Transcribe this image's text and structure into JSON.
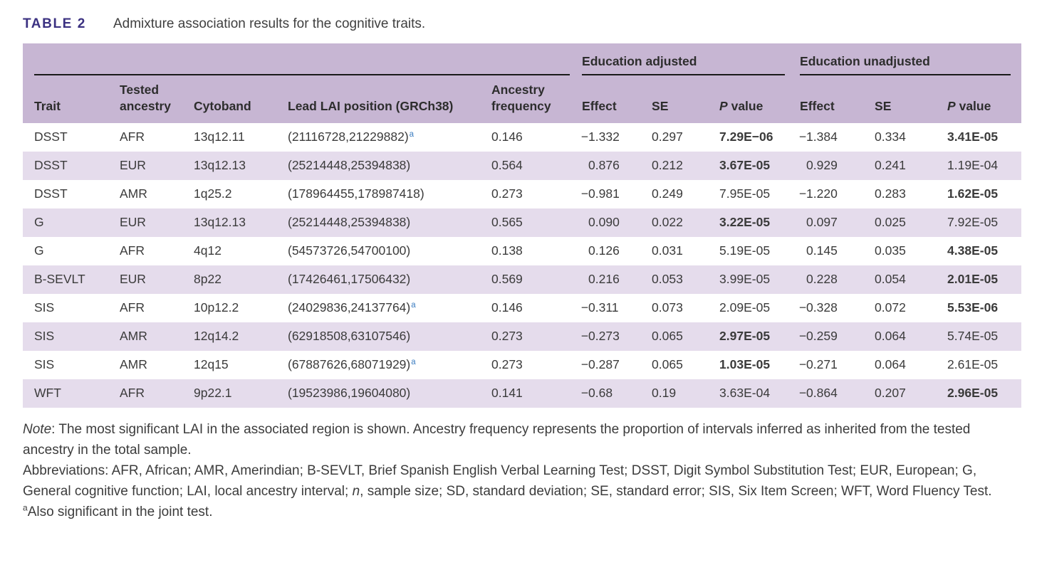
{
  "title": {
    "label": "TABLE 2",
    "caption": "Admixture association results for the cognitive traits."
  },
  "colors": {
    "header_bg": "#c7b6d3",
    "stripe_bg": "#e5dcec",
    "title_color": "#3b3181",
    "text_color": "#3b3b3b",
    "rule_color": "#1a1a1a",
    "footnote_blue": "#3d7ec1",
    "page_bg": "#ffffff"
  },
  "table": {
    "groups": [
      {
        "label": "",
        "span": 5
      },
      {
        "label": "Education adjusted",
        "span": 3
      },
      {
        "label": "Education unadjusted",
        "span": 3
      }
    ],
    "columns": [
      {
        "label": "Trait"
      },
      {
        "label": "Tested ancestry"
      },
      {
        "label": "Cytoband"
      },
      {
        "label": "Lead LAI position (GRCh38)"
      },
      {
        "label": "Ancestry frequency"
      },
      {
        "label": "Effect"
      },
      {
        "label": "SE"
      },
      {
        "label": "P value",
        "italic_first": true
      },
      {
        "label": "Effect"
      },
      {
        "label": "SE"
      },
      {
        "label": "P value",
        "italic_first": true
      }
    ],
    "rows": [
      {
        "trait": "DSST",
        "ancestry": "AFR",
        "cytoband": "13q12.11",
        "position": "(21116728,21229882)",
        "footnote": "a",
        "frequency": "0.146",
        "adj_effect": "−1.332",
        "adj_se": "0.297",
        "adj_p": "7.29E−06",
        "adj_p_bold": true,
        "unadj_effect": "−1.384",
        "unadj_se": "0.334",
        "unadj_p": "3.41E-05",
        "unadj_p_bold": true
      },
      {
        "trait": "DSST",
        "ancestry": "EUR",
        "cytoband": "13q12.13",
        "position": "(25214448,25394838)",
        "footnote": "",
        "frequency": "0.564",
        "adj_effect": "0.876",
        "adj_se": "0.212",
        "adj_p": "3.67E-05",
        "adj_p_bold": true,
        "unadj_effect": "0.929",
        "unadj_se": "0.241",
        "unadj_p": "1.19E-04",
        "unadj_p_bold": false
      },
      {
        "trait": "DSST",
        "ancestry": "AMR",
        "cytoband": "1q25.2",
        "position": "(178964455,178987418)",
        "footnote": "",
        "frequency": "0.273",
        "adj_effect": "−0.981",
        "adj_se": "0.249",
        "adj_p": "7.95E-05",
        "adj_p_bold": false,
        "unadj_effect": "−1.220",
        "unadj_se": "0.283",
        "unadj_p": "1.62E-05",
        "unadj_p_bold": true
      },
      {
        "trait": "G",
        "ancestry": "EUR",
        "cytoband": "13q12.13",
        "position": "(25214448,25394838)",
        "footnote": "",
        "frequency": "0.565",
        "adj_effect": "0.090",
        "adj_se": "0.022",
        "adj_p": "3.22E-05",
        "adj_p_bold": true,
        "unadj_effect": "0.097",
        "unadj_se": "0.025",
        "unadj_p": "7.92E-05",
        "unadj_p_bold": false
      },
      {
        "trait": "G",
        "ancestry": "AFR",
        "cytoband": "4q12",
        "position": "(54573726,54700100)",
        "footnote": "",
        "frequency": "0.138",
        "adj_effect": "0.126",
        "adj_se": "0.031",
        "adj_p": "5.19E-05",
        "adj_p_bold": false,
        "unadj_effect": "0.145",
        "unadj_se": "0.035",
        "unadj_p": "4.38E-05",
        "unadj_p_bold": true
      },
      {
        "trait": "B-SEVLT",
        "ancestry": "EUR",
        "cytoband": "8p22",
        "position": "(17426461,17506432)",
        "footnote": "",
        "frequency": "0.569",
        "adj_effect": "0.216",
        "adj_se": "0.053",
        "adj_p": "3.99E-05",
        "adj_p_bold": false,
        "unadj_effect": "0.228",
        "unadj_se": "0.054",
        "unadj_p": "2.01E-05",
        "unadj_p_bold": true
      },
      {
        "trait": "SIS",
        "ancestry": "AFR",
        "cytoband": "10p12.2",
        "position": "(24029836,24137764)",
        "footnote": "a",
        "frequency": "0.146",
        "adj_effect": "−0.311",
        "adj_se": "0.073",
        "adj_p": "2.09E-05",
        "adj_p_bold": false,
        "unadj_effect": "−0.328",
        "unadj_se": "0.072",
        "unadj_p": "5.53E-06",
        "unadj_p_bold": true
      },
      {
        "trait": "SIS",
        "ancestry": "AMR",
        "cytoband": "12q14.2",
        "position": "(62918508,63107546)",
        "footnote": "",
        "frequency": "0.273",
        "adj_effect": "−0.273",
        "adj_se": "0.065",
        "adj_p": "2.97E-05",
        "adj_p_bold": true,
        "unadj_effect": "−0.259",
        "unadj_se": "0.064",
        "unadj_p": "5.74E-05",
        "unadj_p_bold": false
      },
      {
        "trait": "SIS",
        "ancestry": "AMR",
        "cytoband": "12q15",
        "position": "(67887626,68071929)",
        "footnote": "a",
        "frequency": "0.273",
        "adj_effect": "−0.287",
        "adj_se": "0.065",
        "adj_p": "1.03E-05",
        "adj_p_bold": true,
        "unadj_effect": "−0.271",
        "unadj_se": "0.064",
        "unadj_p": "2.61E-05",
        "unadj_p_bold": false
      },
      {
        "trait": "WFT",
        "ancestry": "AFR",
        "cytoband": "9p22.1",
        "position": "(19523986,19604080)",
        "footnote": "",
        "frequency": "0.141",
        "adj_effect": "−0.68",
        "adj_se": "0.19",
        "adj_p": "3.63E-04",
        "adj_p_bold": false,
        "unadj_effect": "−0.864",
        "unadj_se": "0.207",
        "unadj_p": "2.96E-05",
        "unadj_p_bold": true
      }
    ]
  },
  "notes": {
    "note_label": "Note",
    "note_text": ": The most significant LAI in the associated region is shown. Ancestry frequency represents the proportion of intervals inferred as inherited from the tested ancestry in the total sample.",
    "abbrev_part1": "Abbreviations: AFR, African; AMR, Amerindian; B-SEVLT, Brief Spanish English Verbal Learning Test; DSST, Digit Symbol Substitution Test; EUR, European; G, General cognitive function; LAI, local ancestry interval; ",
    "abbrev_n": "n",
    "abbrev_part2": ", sample size; SD, standard deviation; SE, standard error; SIS, Six Item Screen; WFT, Word Fluency Test.",
    "footnote_marker": "a",
    "footnote_text": "Also significant in the joint test."
  }
}
